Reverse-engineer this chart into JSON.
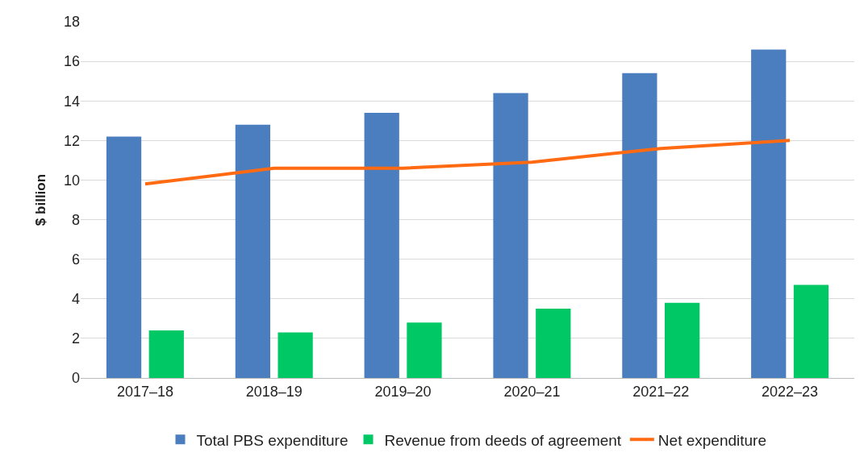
{
  "chart_data": {
    "type": "bar",
    "ylabel": "$ billion",
    "categories": [
      "2017–18",
      "2018–19",
      "2019–20",
      "2020–21",
      "2021–22",
      "2022–23"
    ],
    "series": [
      {
        "name": "Total PBS expenditure",
        "color": "#4a7ebf",
        "values": [
          12.2,
          12.8,
          13.4,
          14.4,
          15.4,
          16.6
        ]
      },
      {
        "name": "Revenue from deeds of agreement",
        "color": "#00c864",
        "values": [
          2.4,
          2.3,
          2.8,
          3.5,
          3.8,
          4.7
        ]
      },
      {
        "name": "Net expenditure",
        "type": "line",
        "color": "#ff6a13",
        "values": [
          9.8,
          10.6,
          10.6,
          10.9,
          11.6,
          12.0
        ]
      }
    ],
    "ylim": [
      0,
      18
    ],
    "yticks": [
      0,
      2,
      4,
      6,
      8,
      10,
      12,
      14,
      16,
      18
    ],
    "grid": "y",
    "legend": "bottom"
  }
}
